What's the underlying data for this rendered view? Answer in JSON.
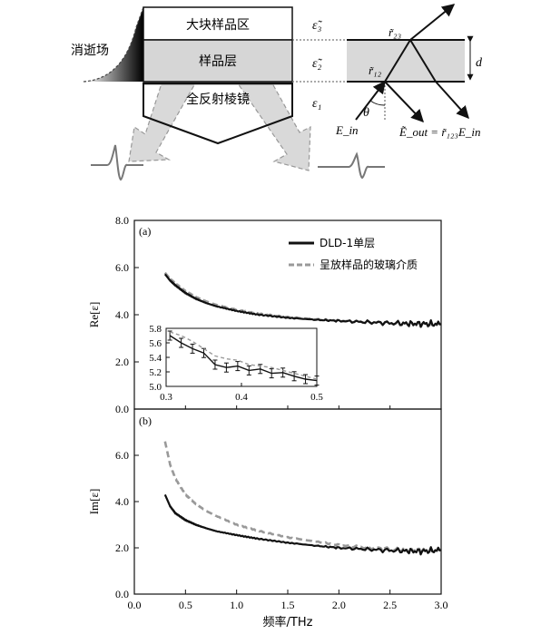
{
  "diagram": {
    "evanescent_label": "消逝场",
    "bulk_label": "大块样品区",
    "sample_label": "样品层",
    "prism_label": "全反射棱镜",
    "eps3": "ε̃₃",
    "eps2": "ε̃₂",
    "eps1": "ε₁",
    "r23": "r̃₂₃",
    "r12": "r̃₁₂",
    "theta": "θ",
    "d": "d",
    "e_in": "E_in",
    "e_out": "Ẽ_out = r̃₁₂₃E_in"
  },
  "chart_data": [
    {
      "type": "line",
      "panel": "(a)",
      "ylabel": "Re[ε]",
      "xlim": [
        0.0,
        3.0
      ],
      "ylim": [
        0.0,
        8.0
      ],
      "yticks": [
        "0.0",
        "2.0",
        "4.0",
        "6.0",
        "8.0"
      ],
      "legend_position": "top-right",
      "series": [
        {
          "name": "DLD-1单层",
          "color": "#111111",
          "style": "solid",
          "x": [
            0.3,
            0.35,
            0.4,
            0.5,
            0.6,
            0.7,
            0.8,
            1.0,
            1.2,
            1.5,
            1.8,
            2.0,
            2.3,
            2.6,
            2.8,
            3.0
          ],
          "y": [
            5.72,
            5.45,
            5.25,
            4.92,
            4.68,
            4.5,
            4.36,
            4.16,
            4.01,
            3.87,
            3.78,
            3.74,
            3.68,
            3.63,
            3.62,
            3.6
          ]
        },
        {
          "name": "呈放样品的玻璃介质",
          "color": "#999999",
          "style": "dashed",
          "x": [
            0.3,
            0.35,
            0.4,
            0.5,
            0.6,
            0.7,
            0.8,
            1.0,
            1.2,
            1.5,
            1.8,
            2.0,
            2.3,
            2.6,
            2.8,
            3.0
          ],
          "y": [
            5.78,
            5.52,
            5.33,
            5.0,
            4.75,
            4.57,
            4.42,
            4.21,
            4.05,
            3.9,
            3.8,
            3.75,
            3.68,
            3.62,
            3.6,
            3.58
          ]
        }
      ],
      "inset": {
        "xlim": [
          0.3,
          0.5
        ],
        "ylim": [
          5.0,
          5.8
        ],
        "xticks": [
          "0.3",
          "0.4",
          "0.5"
        ],
        "yticks": [
          "5.0",
          "5.2",
          "5.4",
          "5.6",
          "5.8"
        ],
        "series": [
          {
            "name": "DLD-1单层",
            "x": [
              0.305,
              0.32,
              0.335,
              0.35,
              0.365,
              0.38,
              0.395,
              0.41,
              0.425,
              0.44,
              0.455,
              0.47,
              0.485,
              0.5
            ],
            "y": [
              5.7,
              5.6,
              5.52,
              5.46,
              5.3,
              5.26,
              5.28,
              5.22,
              5.24,
              5.18,
              5.19,
              5.14,
              5.1,
              5.08
            ]
          },
          {
            "name": "呈放样品的玻璃介质",
            "x": [
              0.305,
              0.32,
              0.335,
              0.35,
              0.365,
              0.38,
              0.395,
              0.41,
              0.425,
              0.44,
              0.455,
              0.47,
              0.485,
              0.5
            ],
            "y": [
              5.75,
              5.7,
              5.62,
              5.52,
              5.42,
              5.38,
              5.36,
              5.3,
              5.28,
              5.26,
              5.22,
              5.18,
              5.14,
              5.1
            ]
          }
        ]
      }
    },
    {
      "type": "line",
      "panel": "(b)",
      "ylabel": "Im[ε]",
      "xlabel": "频率/THz",
      "xlim": [
        0.0,
        3.0
      ],
      "ylim": [
        0.0,
        8.0
      ],
      "xticks": [
        "0.0",
        "0.5",
        "1.0",
        "1.5",
        "2.0",
        "2.5",
        "3.0"
      ],
      "yticks": [
        "0.0",
        "2.0",
        "4.0",
        "6.0"
      ],
      "series": [
        {
          "name": "DLD-1单层",
          "color": "#111111",
          "style": "solid",
          "x": [
            0.3,
            0.35,
            0.4,
            0.5,
            0.6,
            0.7,
            0.8,
            1.0,
            1.2,
            1.5,
            1.8,
            2.0,
            2.3,
            2.6,
            2.8,
            3.0
          ],
          "y": [
            4.3,
            3.8,
            3.5,
            3.2,
            3.0,
            2.85,
            2.72,
            2.55,
            2.4,
            2.22,
            2.08,
            2.0,
            1.93,
            1.87,
            1.85,
            1.9
          ]
        },
        {
          "name": "呈放样品的玻璃介质",
          "color": "#999999",
          "style": "dashed",
          "x": [
            0.3,
            0.35,
            0.4,
            0.5,
            0.6,
            0.7,
            0.8,
            1.0,
            1.2,
            1.5,
            1.8,
            2.0,
            2.3,
            2.6,
            2.8,
            3.0
          ],
          "y": [
            6.6,
            5.6,
            5.0,
            4.3,
            3.9,
            3.6,
            3.38,
            3.0,
            2.75,
            2.45,
            2.25,
            2.12,
            2.0,
            1.92,
            1.88,
            1.9
          ]
        }
      ]
    }
  ]
}
